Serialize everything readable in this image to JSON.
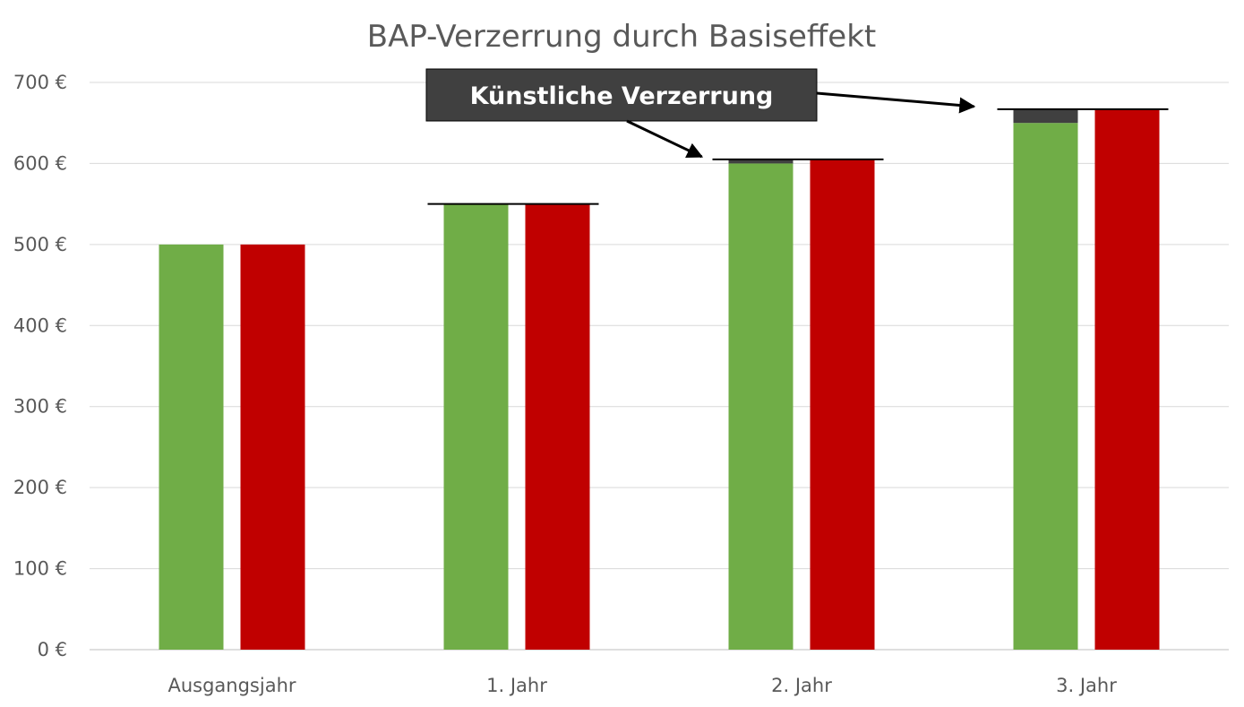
{
  "chart_data": {
    "type": "bar",
    "title": "BAP-Verzerrung durch Basiseffekt",
    "xlabel": "",
    "ylabel": "",
    "categories": [
      "Ausgangsjahr",
      "1. Jahr",
      "2. Jahr",
      "3. Jahr"
    ],
    "ylim": [
      0,
      700
    ],
    "y_ticks": [
      0,
      100,
      200,
      300,
      400,
      500,
      600,
      700
    ],
    "y_tick_labels": [
      "0 €",
      "100 €",
      "200 €",
      "300 €",
      "400 €",
      "500 €",
      "600 €",
      "700 €"
    ],
    "grid": true,
    "legend": "none",
    "series": [
      {
        "color": "#70AD47",
        "values": [
          500,
          550,
          600,
          650
        ],
        "stacked_top": {
          "color": "#404040",
          "values": [
            0,
            0,
            5,
            17
          ]
        }
      },
      {
        "color": "#C00000",
        "values": [
          500,
          550,
          605,
          667
        ]
      }
    ],
    "reference_levels": [
      {
        "category_index": 1,
        "value": 550
      },
      {
        "category_index": 2,
        "value": 605
      },
      {
        "category_index": 3,
        "value": 667
      }
    ],
    "annotation": {
      "text": "Künstliche Verzerrung",
      "box_color": "#404040",
      "text_color": "#FFFFFF",
      "points_to": [
        {
          "category_index": 2,
          "value": 605
        },
        {
          "category_index": 3,
          "value": 667
        }
      ]
    }
  }
}
